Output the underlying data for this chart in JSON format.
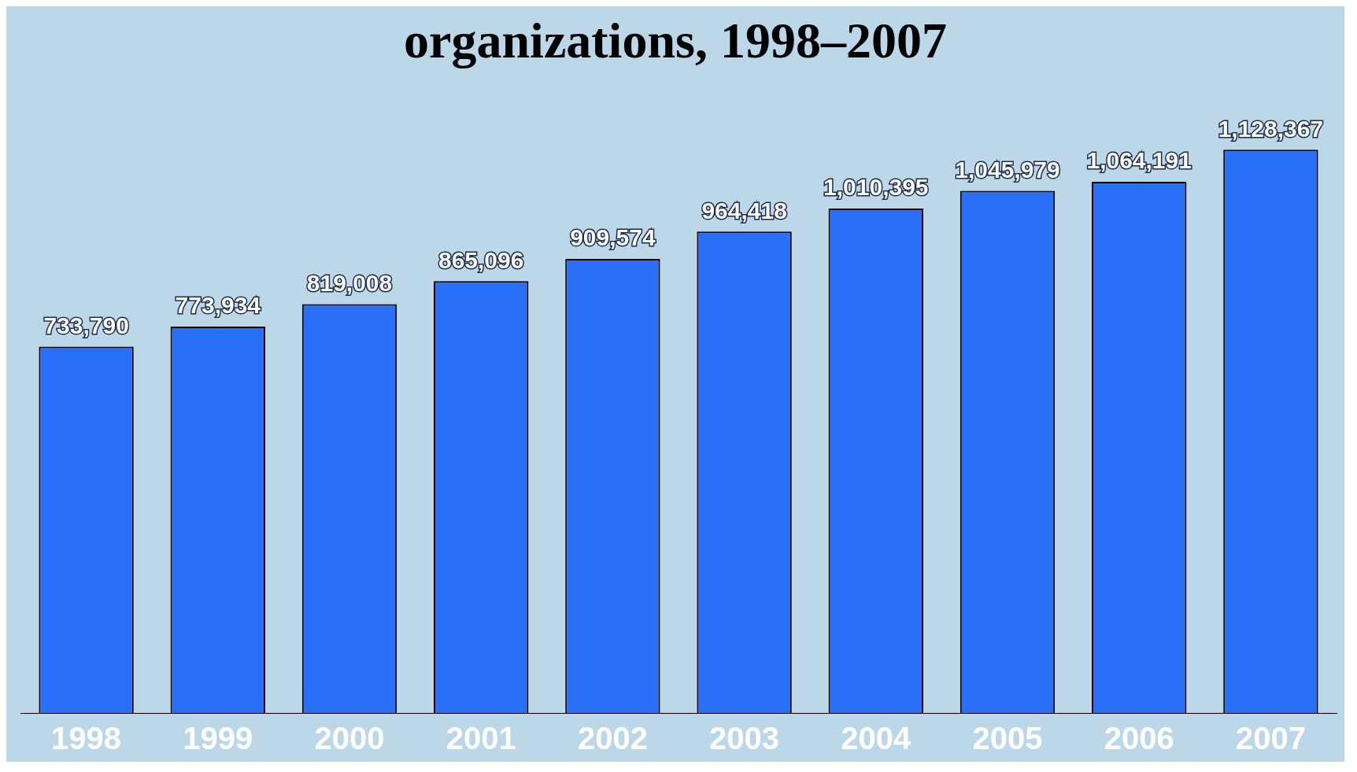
{
  "chart_data": {
    "type": "bar",
    "title": "organizations, 1998–2007",
    "categories": [
      "1998",
      "1999",
      "2000",
      "2001",
      "2002",
      "2003",
      "2004",
      "2005",
      "2006",
      "2007"
    ],
    "values": [
      733790,
      773934,
      819008,
      865096,
      909574,
      964418,
      1010395,
      1045979,
      1064191,
      1128367
    ],
    "value_labels": [
      "733,790",
      "773,934",
      "819,008",
      "865,096",
      "909,574",
      "964,418",
      "1,010,395",
      "1,045,979",
      "1,064,191",
      "1,128,367"
    ],
    "color": "#2a6ff8",
    "relative": false,
    "legend": false,
    "grid": false
  }
}
